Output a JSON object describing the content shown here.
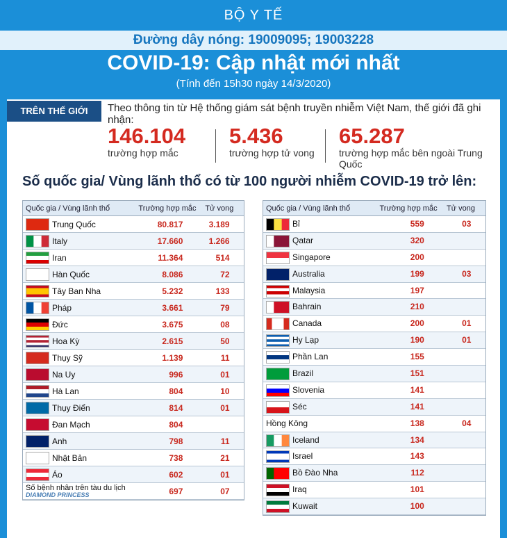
{
  "header": {
    "org": "BỘ Y TẾ",
    "hotline": "Đường dây nóng: 19009095; 19003228",
    "title": "COVID-19: Cập nhật mới nhất",
    "subtitle": "(Tính đến 15h30 ngày 14/3/2020)"
  },
  "world": {
    "label": "TRÊN THẾ GIỚI",
    "intro": "Theo thông tin từ Hệ thống giám sát bệnh truyền nhiễm Việt Nam, thế giới đã ghi nhận:",
    "stats": [
      {
        "value": "146.104",
        "label": "trường hợp mắc"
      },
      {
        "value": "5.436",
        "label": "trường hợp tử vong"
      },
      {
        "value": "65.287",
        "label": "trường hợp  mắc bên ngoài Trung Quốc"
      }
    ]
  },
  "section_title": "Số quốc gia/ Vùng lãnh thổ có từ 100 người  nhiễm COVID-19 trở lên:",
  "ship_label": "DIAMOND PRINCESS",
  "tables": [
    {
      "columns": [
        "Quốc gia / Vùng lãnh thổ",
        "Trường hợp mắc",
        "Tử vong"
      ],
      "rows": [
        [
          "Trung Quốc",
          "80.817",
          "3.189"
        ],
        [
          "Italy",
          "17.660",
          "1.266"
        ],
        [
          "Iran",
          "11.364",
          "514"
        ],
        [
          "Hàn Quốc",
          "8.086",
          "72"
        ],
        [
          "Tây Ban Nha",
          "5.232",
          "133"
        ],
        [
          "Pháp",
          "3.661",
          "79"
        ],
        [
          "Đức",
          "3.675",
          "08"
        ],
        [
          "Hoa Kỳ",
          "2.615",
          "50"
        ],
        [
          "Thụy Sỹ",
          "1.139",
          "11"
        ],
        [
          "Na Uy",
          "996",
          "01"
        ],
        [
          "Hà Lan",
          "804",
          "10"
        ],
        [
          "Thụy Điển",
          "814",
          "01"
        ],
        [
          "Đan Mạch",
          "804",
          null
        ],
        [
          "Anh",
          "798",
          "11"
        ],
        [
          "Nhật Bản",
          "738",
          "21"
        ],
        [
          "Áo",
          "602",
          "01"
        ],
        [
          "Số bệnh nhân trên tàu du lịch",
          "697",
          "07"
        ]
      ]
    },
    {
      "columns": [
        "Quốc gia / Vùng lãnh thổ",
        "Trường hợp mắc",
        "Tử vong"
      ],
      "rows": [
        [
          "Bỉ",
          "559",
          "03"
        ],
        [
          "Qatar",
          "320",
          null
        ],
        [
          "Singapore",
          "200",
          null
        ],
        [
          "Australia",
          "199",
          "03"
        ],
        [
          "Malaysia",
          "197",
          null
        ],
        [
          "Bahrain",
          "210",
          null
        ],
        [
          "Canada",
          "200",
          "01"
        ],
        [
          "Hy Lạp",
          "190",
          "01"
        ],
        [
          "Phần Lan",
          "155",
          null
        ],
        [
          "Brazil",
          "151",
          null
        ],
        [
          "Slovenia",
          "141",
          null
        ],
        [
          "Séc",
          "141",
          null
        ],
        [
          "Hồng Kông",
          "138",
          "04"
        ],
        [
          "Iceland",
          "134",
          null
        ],
        [
          "Israel",
          "143",
          null
        ],
        [
          "Bồ Đào Nha",
          "112",
          null
        ],
        [
          "Iraq",
          "101",
          null
        ],
        [
          "Kuwait",
          "100",
          null
        ]
      ]
    }
  ]
}
